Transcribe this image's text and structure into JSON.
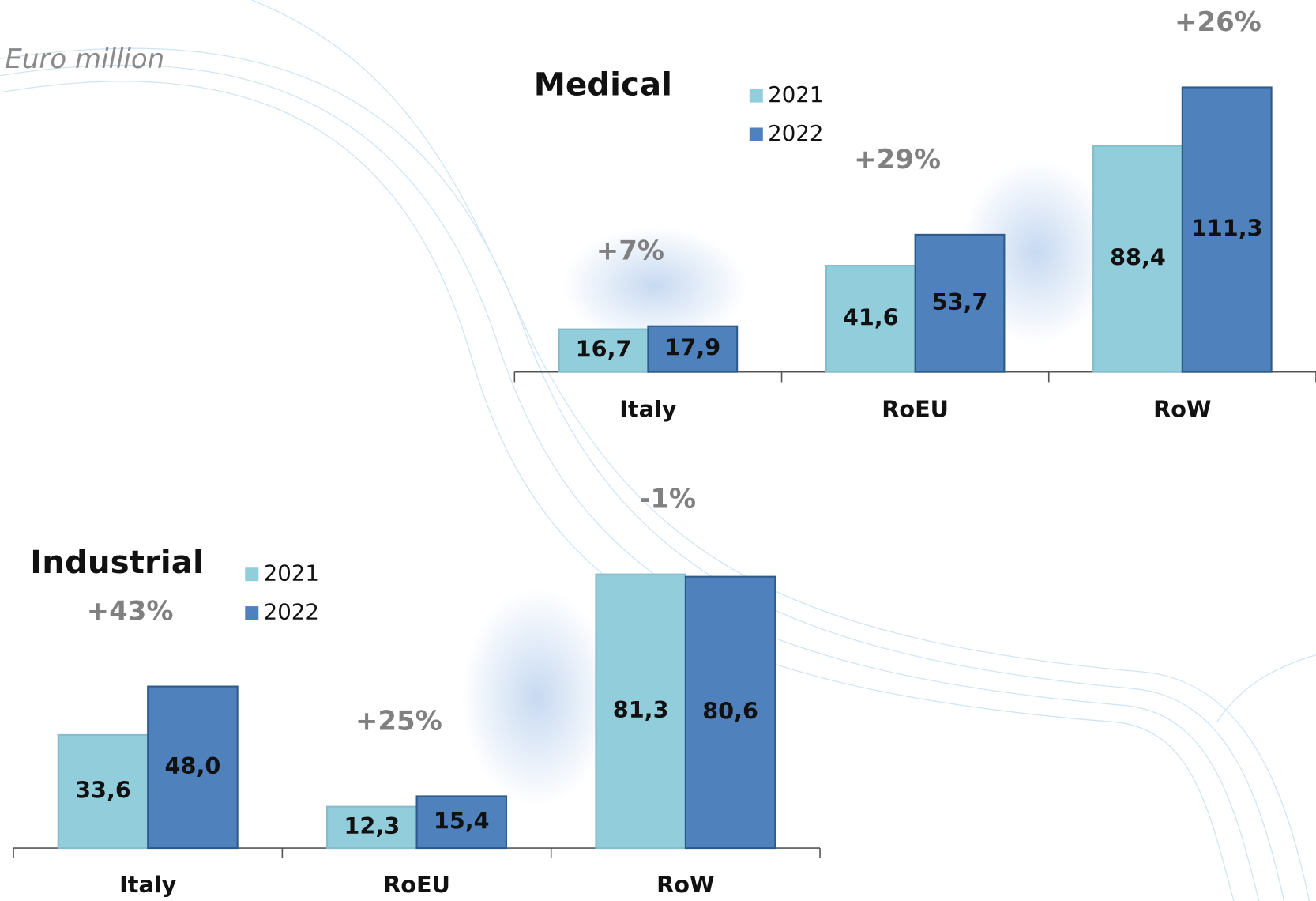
{
  "unit": "Euro million",
  "chart_data": [
    {
      "type": "bar",
      "title": "Medical",
      "categories": [
        "Italy",
        "RoEU",
        "RoW"
      ],
      "series": [
        {
          "name": "2021",
          "color": "#92cddc",
          "values": [
            16.7,
            41.6,
            88.4
          ],
          "value_labels": [
            "16,7",
            "41,6",
            "88,4"
          ]
        },
        {
          "name": "2022",
          "color": "#4f81bd",
          "values": [
            17.9,
            53.7,
            111.3
          ],
          "value_labels": [
            "17,9",
            "53,7",
            "111,3"
          ]
        }
      ],
      "annotations": [
        "+7%",
        "+29%",
        "+26%"
      ]
    },
    {
      "type": "bar",
      "title": "Industrial",
      "categories": [
        "Italy",
        "RoEU",
        "RoW"
      ],
      "series": [
        {
          "name": "2021",
          "color": "#92cddc",
          "values": [
            33.6,
            12.3,
            81.3
          ],
          "value_labels": [
            "33,6",
            "12,3",
            "81,3"
          ]
        },
        {
          "name": "2022",
          "color": "#4f81bd",
          "values": [
            48.0,
            15.4,
            80.6
          ],
          "value_labels": [
            "48,0",
            "15,4",
            "80,6"
          ]
        }
      ],
      "annotations": [
        "+43%",
        "+25%",
        "-1%"
      ]
    }
  ]
}
